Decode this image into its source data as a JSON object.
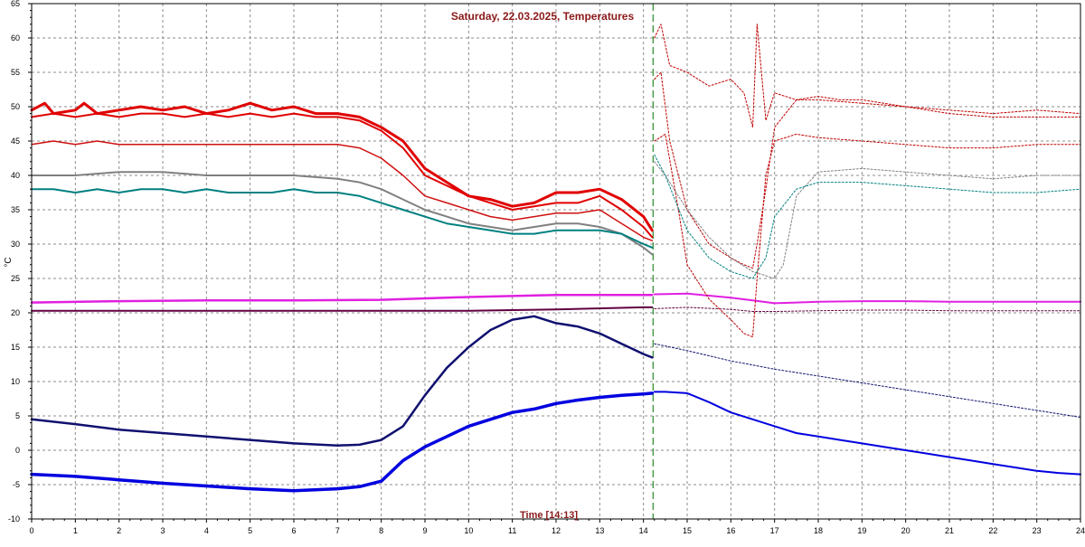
{
  "chart_data": {
    "type": "line",
    "title": "Saturday, 22.03.2025, Temperatures",
    "xlabel": "Time [14:13]",
    "ylabel": "°C",
    "xlim": [
      0,
      24
    ],
    "ylim": [
      -10,
      65
    ],
    "x_ticks": [
      "0",
      "1",
      "2",
      "3",
      "4",
      "5",
      "6",
      "7",
      "8",
      "9",
      "10",
      "11",
      "12",
      "13",
      "14",
      "15",
      "16",
      "17",
      "18",
      "19",
      "20",
      "21",
      "22",
      "23",
      "24"
    ],
    "y_ticks": [
      "65",
      "60",
      "55",
      "50",
      "45",
      "40",
      "35",
      "30",
      "25",
      "20",
      "15",
      "10",
      "5",
      "0",
      "-5",
      "-10"
    ],
    "grid": true,
    "current_time": 14.22,
    "series": [
      {
        "color": "#e00000",
        "width": 3,
        "style": "solid",
        "x": [
          0,
          0.3,
          0.5,
          1,
          1.2,
          1.5,
          2,
          2.5,
          3,
          3.5,
          4,
          4.5,
          5,
          5.5,
          6,
          6.5,
          7,
          7.5,
          8,
          8.5,
          9,
          9.5,
          10,
          10.5,
          11,
          11.5,
          12,
          12.5,
          13,
          13.5,
          14,
          14.2
        ],
        "y": [
          49.5,
          50.5,
          49,
          49.5,
          50.5,
          49,
          49.5,
          50,
          49.5,
          50,
          49,
          49.5,
          50.5,
          49.5,
          50,
          49,
          49,
          48.5,
          47,
          45,
          41,
          39,
          37,
          36.5,
          35.5,
          36,
          37.5,
          37.5,
          38,
          36.5,
          34,
          32
        ]
      },
      {
        "color": "#e00000",
        "width": 2,
        "style": "solid",
        "x": [
          0,
          0.5,
          1,
          1.5,
          2,
          2.5,
          3,
          3.5,
          4,
          4.5,
          5,
          5.5,
          6,
          6.5,
          7,
          7.5,
          8,
          8.5,
          9,
          9.5,
          10,
          10.5,
          11,
          11.5,
          12,
          12.5,
          13,
          13.5,
          14,
          14.2
        ],
        "y": [
          48.5,
          49,
          48.5,
          49,
          48.5,
          49,
          49,
          48.5,
          49,
          48.5,
          49,
          48.5,
          49,
          48.5,
          48.5,
          48,
          46.5,
          44,
          40,
          38.5,
          37,
          36,
          35,
          35.5,
          36,
          36,
          37,
          35,
          32.5,
          31
        ]
      },
      {
        "color": "#d01010",
        "width": 1.5,
        "style": "solid",
        "x": [
          0,
          0.5,
          1,
          1.5,
          2,
          2.5,
          3,
          3.5,
          4,
          4.5,
          5,
          5.5,
          6,
          6.5,
          7,
          7.5,
          8,
          8.5,
          9,
          9.5,
          10,
          10.5,
          11,
          11.5,
          12,
          12.5,
          13,
          13.5,
          14,
          14.2
        ],
        "y": [
          44.5,
          45,
          44.5,
          45,
          44.5,
          44.5,
          44.5,
          44.5,
          44.5,
          44.5,
          44.5,
          44.5,
          44.5,
          44.5,
          44.5,
          44,
          42.5,
          40,
          37,
          36,
          35,
          34,
          33.5,
          34,
          34.5,
          34.5,
          35,
          33,
          31,
          30.5
        ]
      },
      {
        "color": "#808080",
        "width": 2,
        "style": "solid",
        "x": [
          0,
          1,
          2,
          3,
          4,
          5,
          6,
          7,
          7.5,
          8,
          8.5,
          9,
          9.5,
          10,
          10.5,
          11,
          11.5,
          12,
          12.5,
          13,
          13.5,
          14,
          14.2
        ],
        "y": [
          40,
          40,
          40.5,
          40.5,
          40,
          40,
          40,
          39.5,
          39,
          38,
          36.5,
          35,
          34,
          33,
          32.5,
          32,
          32.5,
          33,
          33,
          32.5,
          31.5,
          29.5,
          28.5
        ]
      },
      {
        "color": "#008080",
        "width": 2,
        "style": "solid",
        "x": [
          0,
          0.5,
          1,
          1.5,
          2,
          2.5,
          3,
          3.5,
          4,
          4.5,
          5,
          5.5,
          6,
          6.5,
          7,
          7.5,
          8,
          8.5,
          9,
          9.5,
          10,
          10.5,
          11,
          11.5,
          12,
          12.5,
          13,
          13.5,
          14,
          14.2
        ],
        "y": [
          38,
          38,
          37.5,
          38,
          37.5,
          38,
          38,
          37.5,
          38,
          37.5,
          37.5,
          37.5,
          38,
          37.5,
          37.5,
          37,
          36,
          35,
          34,
          33,
          32.5,
          32,
          31.5,
          31.5,
          32,
          32,
          32,
          31.5,
          30,
          29.5
        ]
      },
      {
        "color": "#e020e0",
        "width": 2.5,
        "style": "solid",
        "x": [
          0,
          2,
          4,
          6,
          8,
          10,
          12,
          14,
          14.2
        ],
        "y": [
          21.5,
          21.7,
          21.8,
          21.8,
          21.9,
          22.3,
          22.6,
          22.6,
          22.6
        ]
      },
      {
        "color": "#600040",
        "width": 2,
        "style": "solid",
        "x": [
          0,
          2,
          4,
          6,
          8,
          10,
          12,
          14,
          14.2
        ],
        "y": [
          20.3,
          20.3,
          20.3,
          20.3,
          20.3,
          20.3,
          20.5,
          20.8,
          20.8
        ]
      },
      {
        "color": "#101070",
        "width": 2.5,
        "style": "solid",
        "x": [
          0,
          1,
          2,
          3,
          4,
          5,
          6,
          7,
          7.5,
          8,
          8.5,
          9,
          9.5,
          10,
          10.5,
          11,
          11.5,
          12,
          12.5,
          13,
          13.5,
          14,
          14.2
        ],
        "y": [
          4.5,
          3.8,
          3,
          2.5,
          2,
          1.5,
          1,
          0.7,
          0.8,
          1.5,
          3.5,
          8,
          12,
          15,
          17.5,
          19,
          19.5,
          18.5,
          18,
          17,
          15.5,
          14,
          13.5
        ]
      },
      {
        "color": "#0000e0",
        "width": 3.5,
        "style": "solid",
        "x": [
          0,
          1,
          2,
          3,
          4,
          5,
          6,
          7,
          7.5,
          8,
          8.5,
          9,
          9.5,
          10,
          10.5,
          11,
          11.5,
          12,
          12.5,
          13,
          13.5,
          14,
          14.2
        ],
        "y": [
          -3.5,
          -3.8,
          -4.3,
          -4.8,
          -5.2,
          -5.6,
          -5.9,
          -5.6,
          -5.3,
          -4.5,
          -1.5,
          0.5,
          2,
          3.5,
          4.5,
          5.5,
          6,
          6.8,
          7.3,
          7.7,
          8,
          8.2,
          8.3
        ]
      },
      {
        "color": "#0000e0",
        "width": 2,
        "style": "solid",
        "x": [
          14.25,
          14.5,
          15,
          15.5,
          16,
          16.5,
          17,
          17.5,
          18,
          18.5,
          19,
          19.5,
          20,
          20.5,
          21,
          21.5,
          22,
          22.5,
          23,
          23.5,
          24
        ],
        "y": [
          8.5,
          8.5,
          8.3,
          7,
          5.5,
          4.5,
          3.5,
          2.5,
          2,
          1.5,
          1,
          0.5,
          0,
          -0.5,
          -1,
          -1.5,
          -2,
          -2.5,
          -3,
          -3.3,
          -3.5
        ]
      },
      {
        "color": "#e020e0",
        "width": 2,
        "style": "solid",
        "x": [
          14.25,
          15,
          15.5,
          16,
          16.5,
          17,
          17.5,
          18,
          19,
          20,
          21,
          22,
          23,
          24
        ],
        "y": [
          22.7,
          22.8,
          22.5,
          22.2,
          21.8,
          21.4,
          21.5,
          21.6,
          21.7,
          21.7,
          21.6,
          21.6,
          21.6,
          21.6
        ]
      },
      {
        "color": "#101070",
        "width": 1,
        "style": "dotted",
        "x": [
          14.25,
          15,
          16,
          17,
          18,
          19,
          20,
          21,
          22,
          23,
          24
        ],
        "y": [
          15.5,
          14.5,
          13,
          11.8,
          10.8,
          9.8,
          8.8,
          7.8,
          6.8,
          5.8,
          4.8
        ]
      },
      {
        "color": "#600040",
        "width": 1,
        "style": "dotted",
        "x": [
          14.25,
          15,
          16,
          16.5,
          17,
          18,
          19,
          20,
          21,
          22,
          23,
          24
        ],
        "y": [
          20.6,
          20.8,
          20.5,
          20.2,
          20.2,
          20.3,
          20.4,
          20.4,
          20.3,
          20.3,
          20.3,
          20.3
        ]
      },
      {
        "color": "#c00000",
        "width": 1,
        "style": "dotted",
        "x": [
          14.25,
          14.4,
          14.6,
          15,
          15.5,
          16,
          16.3,
          16.5,
          16.6,
          16.8,
          17,
          17.5,
          18,
          18.5,
          19,
          20,
          21,
          22,
          23,
          24
        ],
        "y": [
          60,
          62,
          56,
          55,
          53,
          54,
          52,
          47,
          62,
          48,
          52,
          51,
          51.5,
          51,
          51,
          50,
          49.5,
          49,
          49.5,
          49
        ]
      },
      {
        "color": "#c00000",
        "width": 1,
        "style": "dotted",
        "x": [
          14.25,
          14.4,
          14.6,
          15,
          15.5,
          16,
          16.3,
          16.5,
          16.6,
          16.8,
          17,
          17.5,
          18,
          19,
          20,
          21,
          22,
          23,
          24
        ],
        "y": [
          54,
          55,
          45,
          35,
          30,
          28,
          27,
          26.5,
          30,
          38,
          47,
          51,
          51,
          50.5,
          50,
          49,
          48.5,
          48.5,
          48.5
        ]
      },
      {
        "color": "#c00000",
        "width": 1,
        "style": "dotted",
        "x": [
          14.25,
          14.5,
          14.8,
          15,
          15.5,
          16,
          16.3,
          16.5,
          16.6,
          16.8,
          17,
          17.5,
          18,
          19,
          20,
          21,
          22,
          23,
          24
        ],
        "y": [
          45,
          46,
          35,
          27,
          22,
          19,
          17,
          16.5,
          25,
          40,
          45,
          46,
          45.5,
          45,
          44.5,
          44,
          44,
          44.5,
          44.5
        ]
      },
      {
        "color": "#808080",
        "width": 1,
        "style": "dotted",
        "x": [
          14.25,
          14.5,
          15,
          15.5,
          16,
          16.5,
          17,
          17.2,
          17.5,
          18,
          19,
          20,
          21,
          22,
          23,
          24
        ],
        "y": [
          42,
          40,
          35,
          31,
          28,
          26,
          25,
          27,
          37,
          40.5,
          41,
          40.5,
          40,
          39.5,
          40,
          40
        ]
      },
      {
        "color": "#008080",
        "width": 1,
        "style": "dotted",
        "x": [
          14.25,
          14.5,
          15,
          15.5,
          16,
          16.5,
          16.8,
          17,
          17.5,
          18,
          19,
          20,
          21,
          22,
          23,
          24
        ],
        "y": [
          43,
          40,
          32,
          28,
          26,
          25,
          28,
          34,
          38,
          39,
          39,
          38.5,
          38,
          37.5,
          37.5,
          38
        ]
      }
    ]
  }
}
